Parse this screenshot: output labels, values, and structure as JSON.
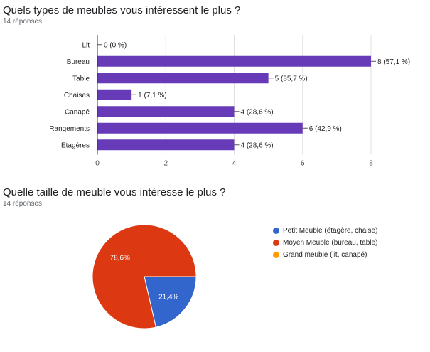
{
  "chart_data": [
    {
      "type": "bar",
      "orientation": "horizontal",
      "title": "Quels types de meubles vous intéressent le plus ?",
      "subtitle": "14 réponses",
      "categories": [
        "Lit",
        "Bureau",
        "Table",
        "Chaises",
        "Canapé",
        "Rangements",
        "Etagères"
      ],
      "values": [
        0,
        8,
        5,
        1,
        4,
        6,
        4
      ],
      "value_labels": [
        "0 (0 %)",
        "8 (57,1 %)",
        "5 (35,7 %)",
        "1 (7,1 %)",
        "4 (28,6 %)",
        "6 (42,9 %)",
        "4 (28,6 %)"
      ],
      "xlim": [
        0,
        8
      ],
      "xticks": [
        "0",
        "2",
        "4",
        "6",
        "8"
      ],
      "grid": true,
      "color": "#673ab7"
    },
    {
      "type": "pie",
      "title": "Quelle taille de meuble vous intéresse le plus ?",
      "subtitle": "14 réponses",
      "legend_position": "right",
      "slices": [
        {
          "label": "Petit Meuble (étagère, chaise)",
          "value": 21.4,
          "display": "21,4%",
          "color": "#3366cc"
        },
        {
          "label": "Moyen Meuble (bureau, table)",
          "value": 78.6,
          "display": "78,6%",
          "color": "#dc3912"
        },
        {
          "label": "Grand meuble (lit, canapé)",
          "value": 0,
          "display": "",
          "color": "#ff9900"
        }
      ]
    }
  ]
}
